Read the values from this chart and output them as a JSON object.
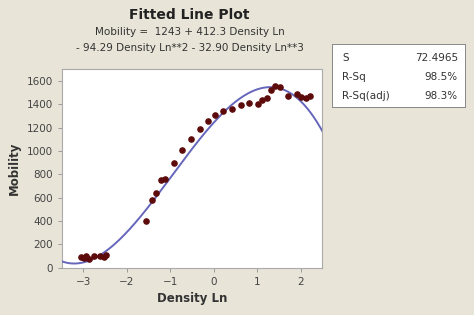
{
  "title": "Fitted Line Plot",
  "subtitle1": "Mobility =  1243 + 412.3 Density Ln",
  "subtitle2": "- 94.29 Density Ln**2 - 32.90 Density Ln**3",
  "xlabel": "Density Ln",
  "ylabel": "Mobility",
  "bg_color": "#e8e4d8",
  "plot_bg_color": "#ffffff",
  "xlim": [
    -3.5,
    2.5
  ],
  "ylim": [
    0,
    1700
  ],
  "xticks": [
    -3,
    -2,
    -1,
    0,
    1,
    2
  ],
  "yticks": [
    0,
    200,
    400,
    600,
    800,
    1000,
    1200,
    1400,
    1600
  ],
  "scatter_x": [
    -3.05,
    -2.98,
    -2.93,
    -2.88,
    -2.75,
    -2.62,
    -2.52,
    -2.47,
    -1.55,
    -1.42,
    -1.32,
    -1.22,
    -1.12,
    -0.92,
    -0.72,
    -0.52,
    -0.32,
    -0.12,
    0.02,
    0.22,
    0.42,
    0.62,
    0.82,
    1.02,
    1.12,
    1.22,
    1.32,
    1.42,
    1.52,
    1.72,
    1.92,
    2.02,
    2.12,
    2.22
  ],
  "scatter_y": [
    92,
    85,
    98,
    78,
    100,
    97,
    88,
    108,
    400,
    580,
    640,
    755,
    760,
    900,
    1005,
    1100,
    1185,
    1260,
    1305,
    1340,
    1360,
    1390,
    1415,
    1405,
    1435,
    1450,
    1525,
    1560,
    1545,
    1470,
    1485,
    1460,
    1455,
    1472
  ],
  "scatter_color": "#5c0a0a",
  "scatter_size": 14,
  "line_color": "#6666bb",
  "line_width": 1.4,
  "coef": [
    1243,
    412.3,
    -94.29,
    -32.9
  ],
  "stats_S": "72.4965",
  "stats_Rsq": "98.5%",
  "stats_Rsqadj": "98.3%",
  "title_fontsize": 10,
  "subtitle_fontsize": 7.5,
  "axis_label_fontsize": 8.5,
  "tick_fontsize": 7.5,
  "stats_fontsize": 7.5
}
